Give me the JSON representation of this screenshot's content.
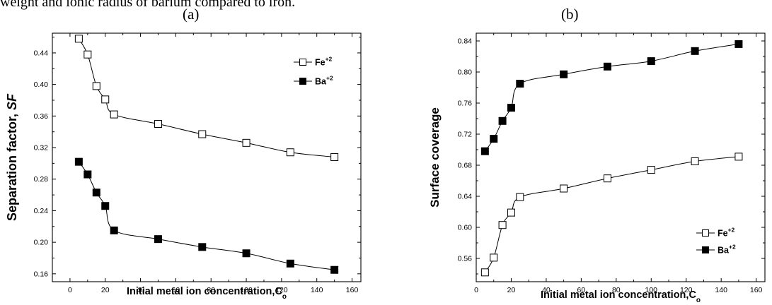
{
  "caption_fragment": "weight and ionic radius of barium compared to iron.",
  "chart_data": [
    {
      "panel_label": "(a)",
      "type": "line",
      "xlabel_main": "Initial metal ion concentration,C",
      "xlabel_sub": "o",
      "ylabel_main": "Separation factor, ",
      "ylabel_italic": "SF",
      "xlim": [
        -10,
        165
      ],
      "ylim": [
        0.15,
        0.465
      ],
      "xticks": [
        "0",
        "20",
        "40",
        "60",
        "80",
        "100",
        "120",
        "140",
        "160"
      ],
      "yticks": [
        "0.16",
        "0.20",
        "0.24",
        "0.28",
        "0.32",
        "0.36",
        "0.40",
        "0.44"
      ],
      "legend_position": "top-right",
      "series": [
        {
          "name": "Fe",
          "charge": "+2",
          "marker": "open-square",
          "x": [
            5,
            10,
            15,
            20,
            25,
            50,
            75,
            100,
            125,
            150
          ],
          "y": [
            0.458,
            0.438,
            0.398,
            0.381,
            0.362,
            0.35,
            0.337,
            0.326,
            0.314,
            0.308
          ]
        },
        {
          "name": "Ba",
          "charge": "+2",
          "marker": "filled-square",
          "x": [
            5,
            10,
            15,
            20,
            25,
            50,
            75,
            100,
            125,
            150
          ],
          "y": [
            0.302,
            0.286,
            0.263,
            0.246,
            0.215,
            0.204,
            0.194,
            0.186,
            0.173,
            0.165
          ]
        }
      ]
    },
    {
      "panel_label": "(b)",
      "type": "line",
      "xlabel_main": "Initial metal ion concentration,C",
      "xlabel_sub": "o",
      "ylabel_main": "Surface coverage",
      "ylabel_italic": "",
      "xlim": [
        0,
        165
      ],
      "ylim": [
        0.53,
        0.85
      ],
      "xticks": [
        "0",
        "20",
        "40",
        "60",
        "80",
        "100",
        "120",
        "140",
        "160"
      ],
      "yticks": [
        "0.56",
        "0.60",
        "0.64",
        "0.68",
        "0.72",
        "0.76",
        "0.80",
        "0.84"
      ],
      "legend_position": "bottom-right",
      "series": [
        {
          "name": "Fe",
          "charge": "+2",
          "marker": "open-square",
          "x": [
            5,
            10,
            15,
            20,
            25,
            50,
            75,
            100,
            125,
            150
          ],
          "y": [
            0.542,
            0.561,
            0.603,
            0.619,
            0.639,
            0.65,
            0.663,
            0.674,
            0.685,
            0.691
          ]
        },
        {
          "name": "Ba",
          "charge": "+2",
          "marker": "filled-square",
          "x": [
            5,
            10,
            15,
            20,
            25,
            50,
            75,
            100,
            125,
            150
          ],
          "y": [
            0.698,
            0.714,
            0.737,
            0.754,
            0.785,
            0.797,
            0.807,
            0.814,
            0.827,
            0.836
          ]
        }
      ]
    }
  ]
}
